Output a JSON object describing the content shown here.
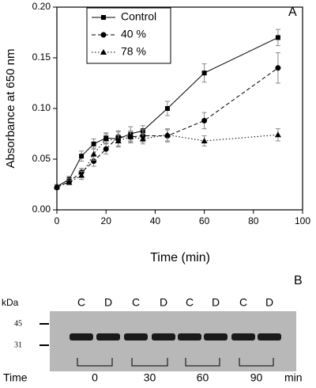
{
  "chart_data": {
    "type": "line",
    "annotation": "A",
    "x_label": "Time (min)",
    "y_label": "Absorbance at 650 nm",
    "xlim": [
      0,
      100
    ],
    "xticks": [
      0,
      20,
      40,
      60,
      80,
      100
    ],
    "ylim": [
      0,
      0.2
    ],
    "yticks": [
      {
        "value": 0,
        "label": "0.00"
      },
      {
        "value": 0.05,
        "label": "0.05"
      },
      {
        "value": 0.1,
        "label": "0.10"
      },
      {
        "value": 0.15,
        "label": "0.15"
      },
      {
        "value": 0.2,
        "label": "0.20"
      }
    ],
    "legend": "upper left",
    "x": [
      0,
      5,
      10,
      15,
      20,
      25,
      30,
      35,
      45,
      60,
      90
    ],
    "series": [
      {
        "name": "Control",
        "color": "#000000",
        "marker": "square",
        "dash": "solid",
        "values": [
          0.023,
          0.03,
          0.053,
          0.065,
          0.071,
          0.07,
          0.075,
          0.078,
          0.1,
          0.135,
          0.17
        ],
        "errors": [
          0.002,
          0.003,
          0.005,
          0.005,
          0.005,
          0.007,
          0.007,
          0.005,
          0.007,
          0.009,
          0.008
        ]
      },
      {
        "name": "40 %",
        "color": "#000000",
        "marker": "circle",
        "dash": "dashed",
        "values": [
          0.022,
          0.028,
          0.037,
          0.048,
          0.06,
          0.072,
          0.072,
          0.073,
          0.073,
          0.088,
          0.14
        ],
        "errors": [
          0.002,
          0.003,
          0.004,
          0.005,
          0.005,
          0.006,
          0.006,
          0.006,
          0.006,
          0.008,
          0.015
        ]
      },
      {
        "name": "78 %",
        "color": "#000000",
        "marker": "triangle",
        "dash": "dotted",
        "values": [
          0.023,
          0.027,
          0.034,
          0.055,
          0.07,
          0.068,
          0.072,
          0.07,
          0.074,
          0.068,
          0.074
        ],
        "errors": [
          0.002,
          0.002,
          0.004,
          0.006,
          0.005,
          0.006,
          0.005,
          0.005,
          0.006,
          0.005,
          0.006
        ]
      }
    ]
  },
  "gel": {
    "annotation": "B",
    "unit": "kDa",
    "markers": [
      "45",
      "31"
    ],
    "lanes": [
      "C",
      "D",
      "C",
      "D",
      "C",
      "D",
      "C",
      "D"
    ],
    "time_label": "Time",
    "times": [
      "0",
      "30",
      "60",
      "90"
    ],
    "time_unit": "min"
  }
}
